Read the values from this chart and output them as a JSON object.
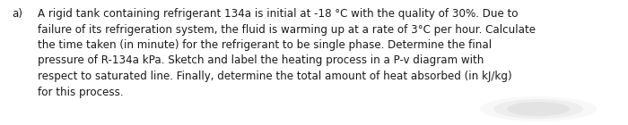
{
  "label": "a)",
  "text": "A rigid tank containing refrigerant 134a is initial at -18 °C with the quality of 30%. Due to\nfailure of its refrigeration system, the fluid is warming up at a rate of 3°C per hour. Calculate\nthe time taken (in minute) for the refrigerant to be single phase. Determine the final\npressure of R-134a kPa. Sketch and label the heating process in a P-v diagram with\nrespect to saturated line. Finally, determine the total amount of heat absorbed (in kJ/kg)\nfor this process.",
  "background_color": "#ffffff",
  "text_color": "#1a1a1a",
  "font_size": 8.6,
  "label_font_size": 8.6,
  "fig_width": 7.0,
  "fig_height": 1.4
}
